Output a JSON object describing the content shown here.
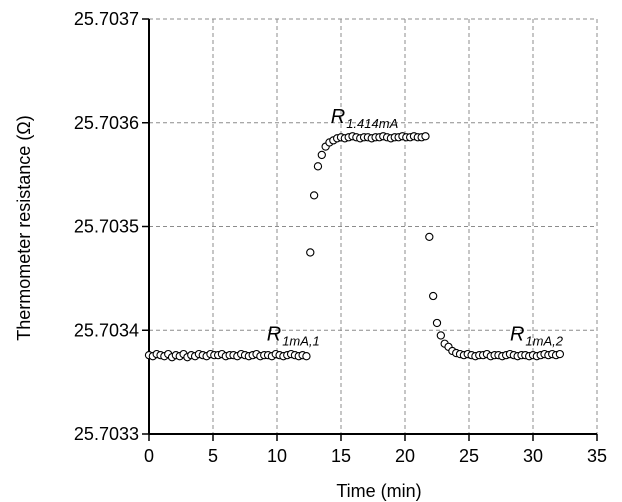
{
  "chart_data": {
    "type": "scatter",
    "xlabel": "Time (min)",
    "ylabel": "Thermometer resistance (Ω)",
    "xlim": [
      0,
      35
    ],
    "ylim": [
      25.7033,
      25.7037
    ],
    "x_ticks": [
      "0",
      "5",
      "10",
      "15",
      "20",
      "25",
      "30",
      "35"
    ],
    "y_ticks": [
      "25.7033",
      "25.7034",
      "25.7035",
      "25.7036",
      "25.7037"
    ],
    "grid": true,
    "marker": "open-circle",
    "colors": {
      "marker_stroke": "#000000",
      "grid": "#8c8c8c"
    },
    "annotations": [
      {
        "main": "R",
        "sub": "1mA,1",
        "x": 9.2,
        "y": 25.70339
      },
      {
        "main": "R",
        "sub": "1.414mA",
        "x": 14.2,
        "y": 25.7036
      },
      {
        "main": "R",
        "sub": "1mA,2",
        "x": 28.2,
        "y": 25.70339
      }
    ],
    "series": [
      {
        "x": [
          0.0,
          0.3,
          0.6,
          0.9,
          1.2,
          1.5,
          1.8,
          2.1,
          2.4,
          2.7,
          3.0,
          3.3,
          3.6,
          3.9,
          4.2,
          4.5,
          4.8,
          5.1,
          5.4,
          5.7,
          6.0,
          6.3,
          6.6,
          6.9,
          7.2,
          7.5,
          7.8,
          8.1,
          8.4,
          8.7,
          9.0,
          9.3,
          9.6,
          9.9,
          10.2,
          10.5,
          10.8,
          11.1,
          11.4,
          11.7,
          12.0,
          12.3,
          12.6,
          12.9,
          13.2,
          13.5,
          13.8,
          14.1,
          14.4,
          14.7,
          15.0,
          15.3,
          15.6,
          15.9,
          16.2,
          16.5,
          16.8,
          17.1,
          17.4,
          17.7,
          18.0,
          18.3,
          18.6,
          18.9,
          19.2,
          19.5,
          19.8,
          20.1,
          20.4,
          20.7,
          21.0,
          21.3,
          21.6,
          21.9,
          22.2,
          22.5,
          22.8,
          23.1,
          23.4,
          23.7,
          24.0,
          24.3,
          24.6,
          24.9,
          25.2,
          25.5,
          25.8,
          26.1,
          26.4,
          26.7,
          27.0,
          27.3,
          27.6,
          27.9,
          28.2,
          28.5,
          28.8,
          29.1,
          29.4,
          29.7,
          30.0,
          30.3,
          30.6,
          30.9,
          31.2,
          31.5,
          31.8,
          32.1
        ],
        "y": [
          25.703376,
          25.703375,
          25.703377,
          25.703376,
          25.703375,
          25.703377,
          25.703374,
          25.703376,
          25.703375,
          25.703377,
          25.703374,
          25.703376,
          25.703375,
          25.703377,
          25.703376,
          25.703375,
          25.703377,
          25.703376,
          25.703376,
          25.703377,
          25.703375,
          25.703376,
          25.703376,
          25.703375,
          25.703377,
          25.703376,
          25.703375,
          25.703376,
          25.703377,
          25.703375,
          25.703376,
          25.703376,
          25.703375,
          25.703377,
          25.703376,
          25.703375,
          25.703376,
          25.703377,
          25.703376,
          25.703375,
          25.703376,
          25.703375,
          25.703475,
          25.70353,
          25.703558,
          25.703569,
          25.703577,
          25.703581,
          25.703583,
          25.703585,
          25.703586,
          25.703585,
          25.703586,
          25.703587,
          25.703586,
          25.703585,
          25.703586,
          25.703586,
          25.703585,
          25.703586,
          25.703586,
          25.703587,
          25.703586,
          25.703585,
          25.703586,
          25.703586,
          25.703587,
          25.703586,
          25.703586,
          25.703587,
          25.703586,
          25.703586,
          25.703587,
          25.70349,
          25.703433,
          25.703407,
          25.703395,
          25.703387,
          25.703384,
          25.70338,
          25.703378,
          25.703377,
          25.703376,
          25.703377,
          25.703376,
          25.703375,
          25.703376,
          25.703376,
          25.703377,
          25.703375,
          25.703376,
          25.703376,
          25.703375,
          25.703376,
          25.703377,
          25.703376,
          25.703375,
          25.703376,
          25.703376,
          25.703375,
          25.703376,
          25.703375,
          25.703376,
          25.703377,
          25.703376,
          25.703377,
          25.703376,
          25.703377
        ]
      }
    ]
  }
}
